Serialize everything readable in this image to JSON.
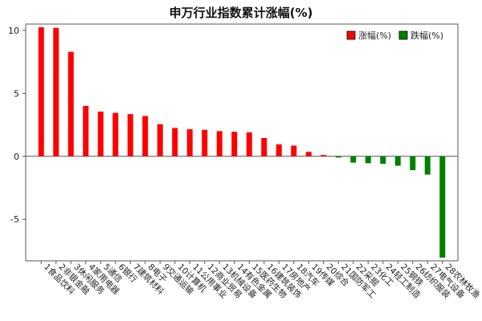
{
  "chart_data": {
    "type": "bar",
    "title": "申万行业指数累计涨幅(%)",
    "xlabel": "",
    "ylabel": "",
    "ylim": [
      -8.3,
      10.5
    ],
    "yticks": [
      10,
      5,
      0,
      -5
    ],
    "ytick_labels": [
      "10",
      "5",
      "0",
      "-5"
    ],
    "grid": false,
    "legend_position": "top-right",
    "legend": [
      {
        "label": "涨幅(%)",
        "color": "#ff0000"
      },
      {
        "label": "跌幅(%)",
        "color": "#008000"
      }
    ],
    "categories": [
      "1食品饮料",
      "2非银金融",
      "3休闲服务",
      "4家用电器",
      "5通信",
      "6银行",
      "7建筑材料",
      "8电子",
      "9交通运输",
      "10计算机",
      "11公用事业",
      "12商业贸易",
      "13机械设备",
      "14有色金属",
      "15医药生物",
      "16建筑装饰",
      "17房地产",
      "18汽车",
      "19传媒",
      "20综合",
      "21国防军工",
      "22采掘",
      "23化工",
      "24轻工制造",
      "25钢铁",
      "26纺织服装",
      "27电气设备",
      "28农林牧渔"
    ],
    "values": [
      10.25,
      10.2,
      8.3,
      4.0,
      3.55,
      3.45,
      3.35,
      3.2,
      2.55,
      2.25,
      2.15,
      2.1,
      2.0,
      1.95,
      1.9,
      1.45,
      0.95,
      0.85,
      0.35,
      0.1,
      -0.1,
      -0.5,
      -0.55,
      -0.6,
      -0.75,
      -1.1,
      -1.45,
      -8.05
    ],
    "colors": {
      "positive": "#ff0000",
      "negative": "#008000",
      "axis": "#555555"
    }
  }
}
